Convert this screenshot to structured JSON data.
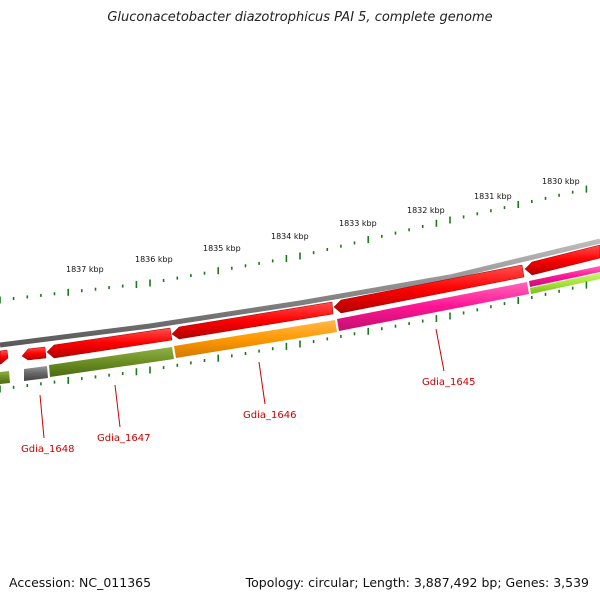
{
  "title": "Gluconacetobacter diazotrophicus PAI 5, complete genome",
  "footer": {
    "accession": "Accession: NC_011365",
    "stats": "Topology: circular; Length: 3,887,492 bp; Genes: 3,539"
  },
  "ruler": {
    "labels": [
      "1837 kbp",
      "1836 kbp",
      "1835 kbp",
      "1834 kbp",
      "1833 kbp",
      "1832 kbp",
      "1831 kbp",
      "1830 kbp"
    ],
    "color": "#1a7a1a"
  },
  "genes": [
    {
      "name": "Gdia_1648",
      "color": "#d0d0d0"
    },
    {
      "name": "Gdia_1647",
      "color": "#6b8e23"
    },
    {
      "name": "Gdia_1646",
      "color": "#ff9900"
    },
    {
      "name": "Gdia_1645",
      "color": "#ff1493"
    }
  ],
  "colors": {
    "backbone": "#8a8a8a",
    "cds": "#ff0000",
    "gene_label": "#cc0000",
    "dark_gray": "#666666",
    "lime": "#a4e33a"
  }
}
